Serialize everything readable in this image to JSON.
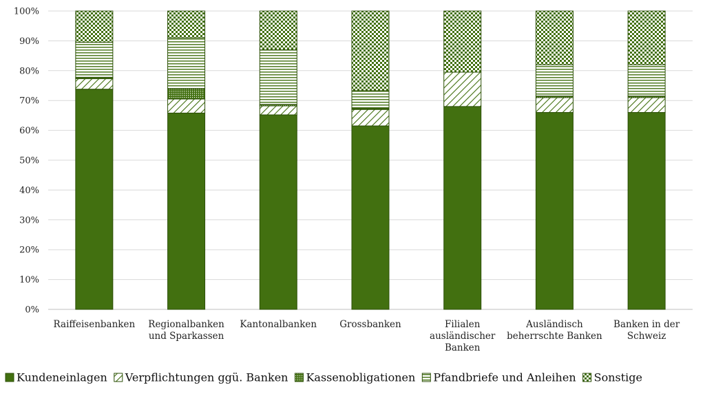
{
  "chart_data": {
    "type": "bar",
    "stacked": true,
    "percent_scale": true,
    "categories": [
      "Raiffeisenbanken",
      "Regionalbanken und Sparkassen",
      "Kantonalbanken",
      "Grossbanken",
      "Filialen ausländischer Banken",
      "Ausländisch beherrschte Banken",
      "Banken in der Schweiz"
    ],
    "category_lines": [
      [
        "Raiffeisenbanken"
      ],
      [
        "Regionalbanken",
        "und Sparkassen"
      ],
      [
        "Kantonalbanken"
      ],
      [
        "Grossbanken"
      ],
      [
        "Filialen",
        "ausländischer",
        "Banken"
      ],
      [
        "Ausländisch",
        "beherrschte Banken"
      ],
      [
        "Banken in der",
        "Schweiz"
      ]
    ],
    "series": [
      {
        "name": "Kundeneinlagen",
        "pattern": "solid",
        "values": [
          73.8,
          65.8,
          65.2,
          61.5,
          68.0,
          66.0,
          66.0
        ]
      },
      {
        "name": "Verpflichtungen ggü. Banken",
        "pattern": "diagonal",
        "values": [
          3.5,
          4.7,
          3.0,
          5.5,
          11.5,
          5.0,
          5.0
        ]
      },
      {
        "name": "Kassenobligationen",
        "pattern": "dots",
        "values": [
          0.5,
          3.5,
          0.5,
          0.5,
          0.0,
          0.5,
          0.5
        ]
      },
      {
        "name": "Pfandbriefe und Anleihen",
        "pattern": "horizontal",
        "values": [
          11.7,
          17.0,
          18.3,
          5.8,
          0.0,
          10.5,
          10.5
        ]
      },
      {
        "name": "Sonstige",
        "pattern": "checker",
        "values": [
          10.5,
          9.0,
          13.0,
          26.7,
          20.5,
          18.0,
          18.0
        ]
      }
    ],
    "yticks": [
      "0%",
      "10%",
      "20%",
      "30%",
      "40%",
      "50%",
      "60%",
      "70%",
      "80%",
      "90%",
      "100%"
    ],
    "ylim": [
      0,
      100
    ],
    "grid": true,
    "legend_position": "bottom",
    "colors": {
      "bar": "#427010",
      "stroke": "#2c4f08",
      "grid": "#d9d9d9",
      "axis": "#bfbfbf"
    },
    "title": "",
    "xlabel": "",
    "ylabel": ""
  }
}
